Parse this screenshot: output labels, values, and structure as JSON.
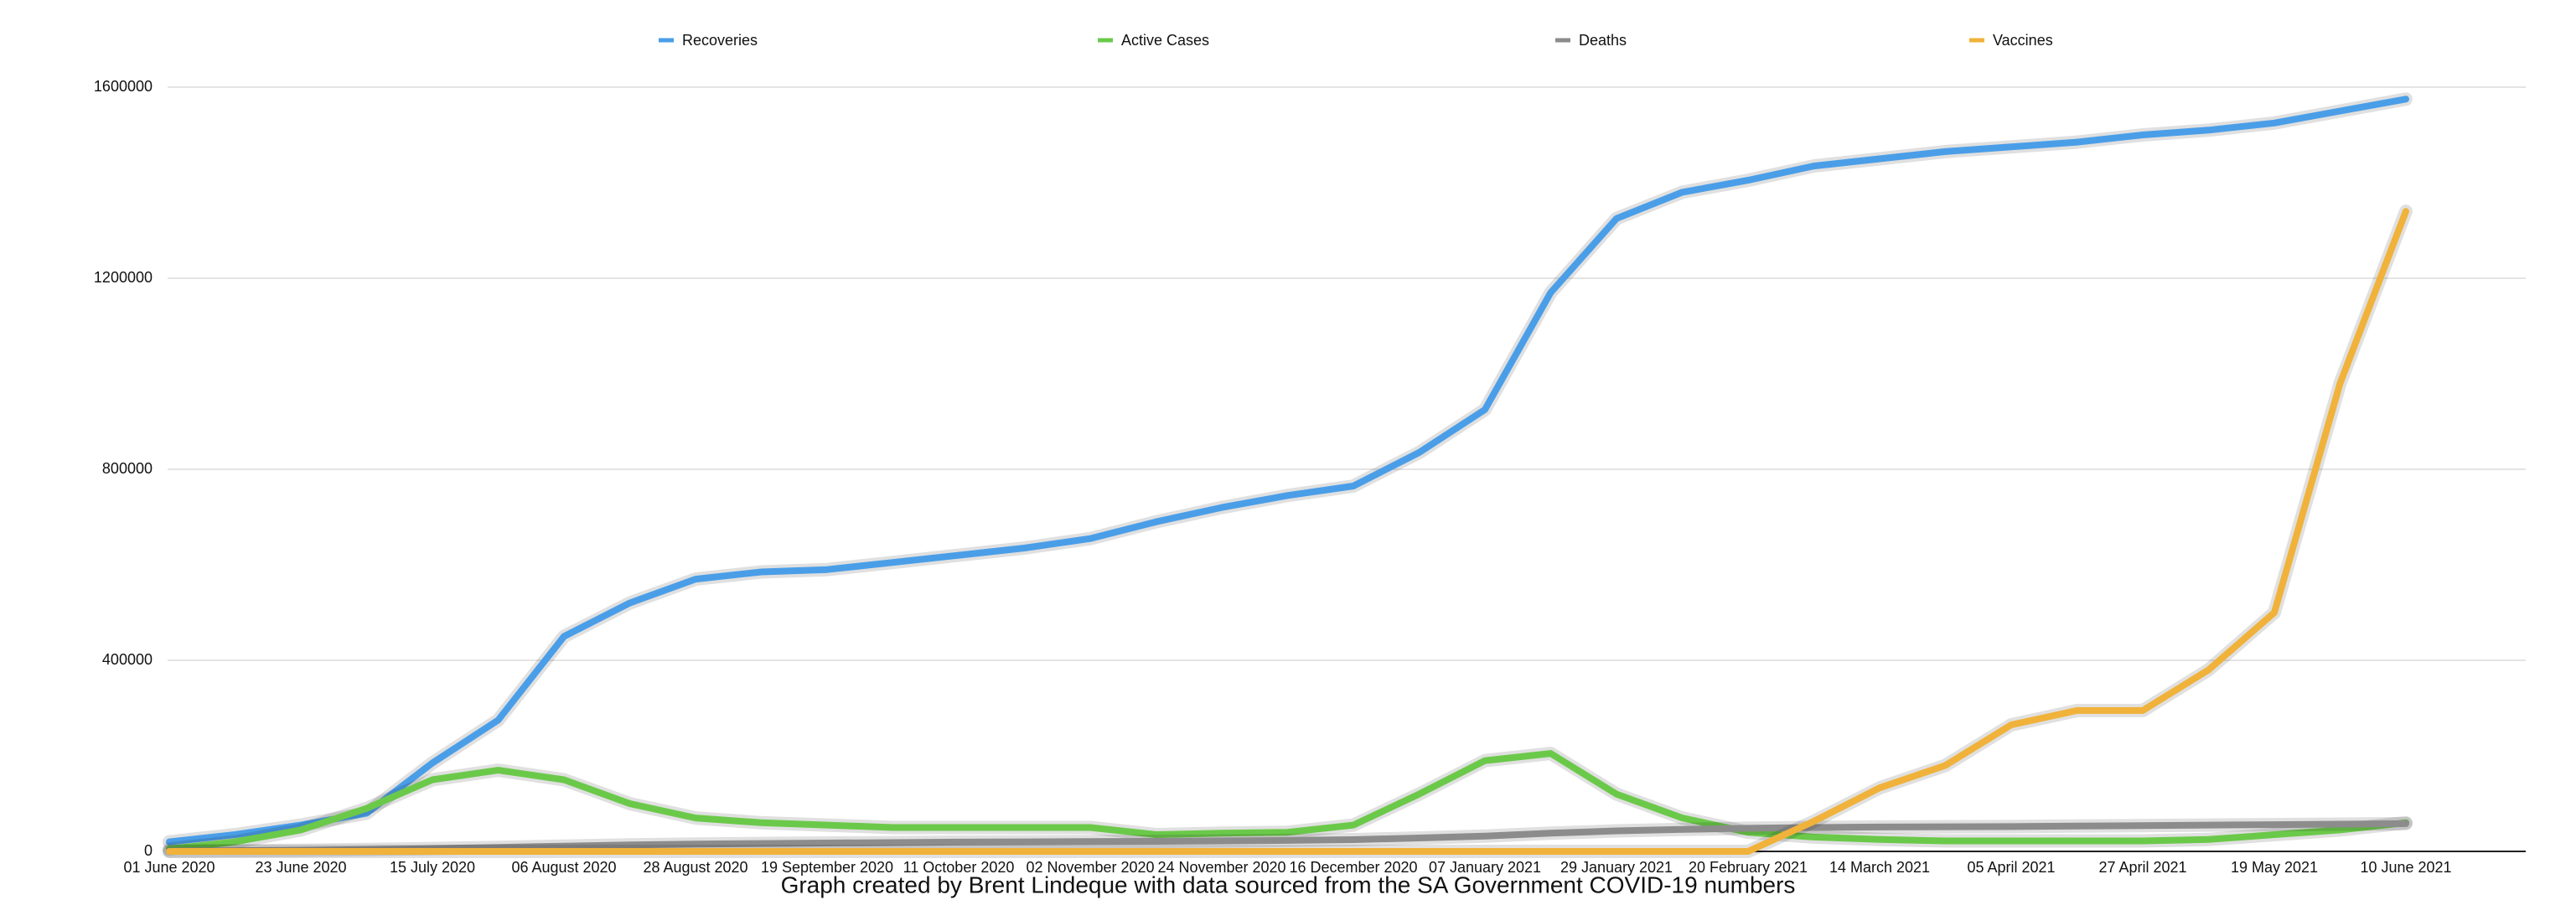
{
  "chart_data": {
    "type": "line",
    "categories": [
      "01 June 2020",
      null,
      "23 June 2020",
      null,
      "15 July 2020",
      null,
      "06 August 2020",
      null,
      "28 August 2020",
      null,
      "19 September 2020",
      null,
      "11 October 2020",
      null,
      "02 November 2020",
      null,
      "24 November 2020",
      null,
      "16 December 2020",
      null,
      "07 January 2021",
      null,
      "29 January 2021",
      null,
      "20 February 2021",
      null,
      "14 March 2021",
      null,
      "05 April 2021",
      null,
      "27 April 2021",
      null,
      "19 May 2021",
      null,
      "10 June 2021"
    ],
    "series": [
      {
        "name": "Recoveries",
        "color": "#4a9ee8",
        "values": [
          20000,
          35000,
          55000,
          80000,
          185000,
          275000,
          450000,
          520000,
          570000,
          585000,
          590000,
          605000,
          620000,
          635000,
          655000,
          690000,
          720000,
          745000,
          765000,
          835000,
          925000,
          1170000,
          1325000,
          1380000,
          1405000,
          1435000,
          1450000,
          1465000,
          1475000,
          1485000,
          1500000,
          1510000,
          1525000,
          1550000,
          1575000
        ]
      },
      {
        "name": "Active Cases",
        "color": "#6bc94a",
        "values": [
          5000,
          20000,
          45000,
          90000,
          150000,
          170000,
          150000,
          100000,
          70000,
          60000,
          55000,
          50000,
          50000,
          50000,
          50000,
          35000,
          38000,
          40000,
          55000,
          120000,
          190000,
          205000,
          120000,
          70000,
          40000,
          30000,
          25000,
          22000,
          22000,
          22000,
          22000,
          25000,
          35000,
          45000,
          60000
        ]
      },
      {
        "name": "Deaths",
        "color": "#8c8c8c",
        "values": [
          700,
          1500,
          2500,
          4000,
          6000,
          8500,
          11000,
          13500,
          15500,
          16500,
          17500,
          18500,
          19500,
          20000,
          20500,
          21000,
          22000,
          23000,
          24500,
          28000,
          32000,
          38000,
          43000,
          46000,
          48500,
          50000,
          51000,
          51500,
          52000,
          53000,
          54000,
          55000,
          56000,
          57000,
          58000
        ]
      },
      {
        "name": "Vaccines",
        "color": "#f0b23a",
        "values": [
          0,
          0,
          0,
          0,
          0,
          0,
          0,
          0,
          0,
          0,
          0,
          0,
          0,
          0,
          0,
          0,
          0,
          0,
          0,
          0,
          0,
          0,
          0,
          0,
          0,
          63000,
          133000,
          180000,
          265000,
          295000,
          295000,
          380000,
          500000,
          980000,
          1340000
        ]
      }
    ],
    "ylim": [
      0,
      1600000
    ],
    "yticks": [
      0,
      400000,
      800000,
      1200000,
      1600000
    ],
    "grid": true,
    "caption": "Graph created by Brent Lindeque with data sourced from the SA Government COVID-19 numbers"
  }
}
